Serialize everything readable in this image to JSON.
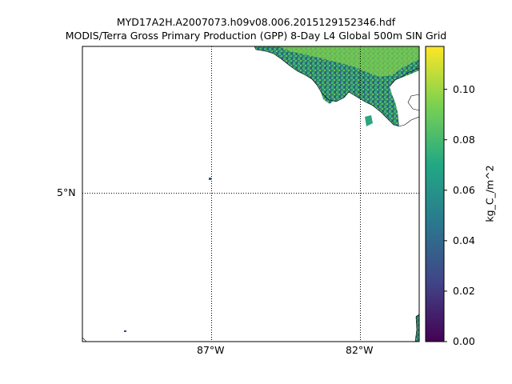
{
  "figure": {
    "title_line1": "MYD17A2H.A2007073.h09v08.006.2015129152346.hdf",
    "title_line2": "MODIS/Terra Gross Primary Production (GPP) 8-Day L4 Global 500m SIN Grid"
  },
  "map": {
    "latitude_labels": [
      "5°N"
    ],
    "longitude_labels": [
      "87°W",
      "82°W"
    ],
    "gridlines": "dotted",
    "land_overlay": "Costa Rica / Panama coastline, top-right corner"
  },
  "colorbar": {
    "label": "kg_C_/m^2",
    "ticks": [
      "0.00",
      "0.02",
      "0.04",
      "0.06",
      "0.08",
      "0.10"
    ],
    "min": 0.0,
    "max": 0.117,
    "colormap": [
      "#440154",
      "#414487",
      "#2a788e",
      "#22a884",
      "#7ad151",
      "#fde725"
    ]
  }
}
